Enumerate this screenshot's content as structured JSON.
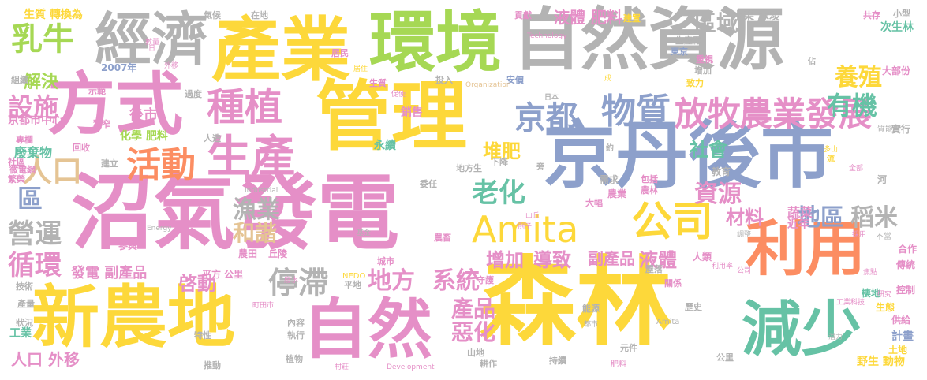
{
  "palette": {
    "pink": "#e58fc7",
    "yellow": "#fdd83a",
    "green": "#66c2a5",
    "orange": "#fc8d62",
    "blue": "#8da0cb",
    "lime": "#a6d854",
    "tan": "#e5c494",
    "gray": "#b3b3b3"
  },
  "words": [
    {
      "text": "自然資源",
      "color": "gray"
    },
    {
      "text": "森林",
      "color": "yellow"
    },
    {
      "text": "沼氣發電",
      "color": "pink"
    },
    {
      "text": "管理",
      "color": "yellow"
    },
    {
      "text": "京丹後市",
      "color": "blue"
    },
    {
      "text": "產業",
      "color": "yellow"
    },
    {
      "text": "環境",
      "color": "lime"
    },
    {
      "text": "新農地",
      "color": "yellow"
    },
    {
      "text": "方式",
      "color": "pink"
    },
    {
      "text": "自然",
      "color": "pink"
    },
    {
      "text": "經濟",
      "color": "gray"
    },
    {
      "text": "利用",
      "color": "orange"
    },
    {
      "text": "減少",
      "color": "green"
    },
    {
      "text": "生產",
      "color": "pink"
    },
    {
      "text": "種植",
      "color": "pink"
    },
    {
      "text": "Amita",
      "color": "yellow"
    },
    {
      "text": "公司",
      "color": "yellow"
    },
    {
      "text": "活動",
      "color": "orange"
    },
    {
      "text": "放牧",
      "color": "pink"
    },
    {
      "text": "農業發展",
      "color": "pink"
    },
    {
      "text": "物質",
      "color": "blue"
    },
    {
      "text": "京都",
      "color": "blue"
    },
    {
      "text": "乳牛",
      "color": "lime"
    },
    {
      "text": "人口",
      "color": "tan"
    },
    {
      "text": "停滯",
      "color": "gray"
    },
    {
      "text": "地方",
      "color": "pink"
    },
    {
      "text": "系統",
      "color": "pink"
    },
    {
      "text": "有機",
      "color": "green"
    },
    {
      "text": "老化",
      "color": "green"
    },
    {
      "text": "區",
      "color": "blue"
    },
    {
      "text": "營運",
      "color": "gray"
    },
    {
      "text": "循環",
      "color": "pink"
    },
    {
      "text": "設施",
      "color": "pink"
    },
    {
      "text": "資源",
      "color": "pink"
    },
    {
      "text": "和諧",
      "color": "tan"
    },
    {
      "text": "漁業",
      "color": "gray"
    },
    {
      "text": "地區",
      "color": "blue"
    },
    {
      "text": "稻米",
      "color": "gray"
    },
    {
      "text": "養殖",
      "color": "yellow"
    },
    {
      "text": "社會",
      "color": "green"
    },
    {
      "text": "堆肥",
      "color": "yellow"
    },
    {
      "text": "材料",
      "color": "pink"
    },
    {
      "text": "區域",
      "color": "gray"
    },
    {
      "text": "產品",
      "color": "pink"
    },
    {
      "text": "惡化",
      "color": "pink"
    },
    {
      "text": "啓動",
      "color": "pink"
    },
    {
      "text": "解決",
      "color": "lime"
    },
    {
      "text": "液體",
      "color": "pink"
    },
    {
      "text": "副產品",
      "color": "pink"
    },
    {
      "text": "增加",
      "color": "pink"
    },
    {
      "text": "導致",
      "color": "pink"
    },
    {
      "text": "人口 外移",
      "color": "pink"
    },
    {
      "text": "發電 副產品",
      "color": "pink"
    },
    {
      "text": "液體 肥料",
      "color": "pink"
    },
    {
      "text": "蔬菜",
      "color": "pink"
    },
    {
      "text": "近年",
      "color": "pink"
    },
    {
      "text": "工業",
      "color": "green"
    },
    {
      "text": "廢棄物",
      "color": "green"
    },
    {
      "text": "後市",
      "color": "pink"
    },
    {
      "text": "京都市中心",
      "color": "pink"
    },
    {
      "text": "化學 肥料",
      "color": "lime"
    },
    {
      "text": "永續",
      "color": "green"
    },
    {
      "text": "銷售",
      "color": "pink"
    },
    {
      "text": "生質 轉換為",
      "color": "yellow"
    },
    {
      "text": "木柴 木炭",
      "color": "gray"
    },
    {
      "text": "次生林",
      "color": "green"
    },
    {
      "text": "2007年",
      "color": "blue"
    },
    {
      "text": "生產厰",
      "color": "gray"
    },
    {
      "text": "大部份",
      "color": "pink"
    },
    {
      "text": "實行",
      "color": "gray"
    },
    {
      "text": "野生 動物",
      "color": "yellow"
    },
    {
      "text": "計畫",
      "color": "blue"
    },
    {
      "text": "供給",
      "color": "pink"
    },
    {
      "text": "生態",
      "color": "yellow"
    },
    {
      "text": "控制",
      "color": "pink"
    },
    {
      "text": "傳統",
      "color": "pink"
    },
    {
      "text": "合作",
      "color": "pink"
    },
    {
      "text": "棲地",
      "color": "green"
    },
    {
      "text": "土地",
      "color": "yellow"
    },
    {
      "text": "農業",
      "color": "pink"
    },
    {
      "text": "教育",
      "color": "gray"
    },
    {
      "text": "需求",
      "color": "gray"
    },
    {
      "text": "人類",
      "color": "pink"
    },
    {
      "text": "關係",
      "color": "pink"
    },
    {
      "text": "屋落",
      "color": "gray"
    },
    {
      "text": "平方 公里",
      "color": "pink"
    },
    {
      "text": "農田",
      "color": "pink"
    },
    {
      "text": "丘陵",
      "color": "pink"
    },
    {
      "text": "參與",
      "color": "pink"
    },
    {
      "text": "植物",
      "color": "gray"
    },
    {
      "text": "耕作",
      "color": "gray"
    },
    {
      "text": "內容",
      "color": "gray"
    },
    {
      "text": "執行",
      "color": "gray"
    },
    {
      "text": "持續",
      "color": "gray"
    },
    {
      "text": "推動",
      "color": "gray"
    },
    {
      "text": "山地",
      "color": "gray"
    },
    {
      "text": "元件",
      "color": "gray"
    },
    {
      "text": "歷史",
      "color": "gray"
    },
    {
      "text": "能源",
      "color": "gray"
    },
    {
      "text": "公里",
      "color": "gray"
    },
    {
      "text": "特性",
      "color": "gray"
    },
    {
      "text": "產量",
      "color": "gray"
    },
    {
      "text": "狀況",
      "color": "gray"
    },
    {
      "text": "技術",
      "color": "gray"
    },
    {
      "text": "組織",
      "color": "gray"
    },
    {
      "text": "專欄",
      "color": "pink"
    },
    {
      "text": "微電網",
      "color": "pink"
    },
    {
      "text": "社區",
      "color": "pink"
    },
    {
      "text": "繁榮",
      "color": "pink"
    },
    {
      "text": "回收",
      "color": "pink"
    },
    {
      "text": "建立",
      "color": "gray"
    },
    {
      "text": "人造",
      "color": "gray"
    },
    {
      "text": "投入",
      "color": "gray"
    },
    {
      "text": "生質",
      "color": "pink"
    },
    {
      "text": "安價",
      "color": "blue"
    },
    {
      "text": "致力",
      "color": "yellow"
    },
    {
      "text": "增加",
      "color": "gray"
    },
    {
      "text": "東京",
      "color": "blue"
    },
    {
      "text": "重視",
      "color": "pink"
    },
    {
      "text": "在地",
      "color": "gray"
    },
    {
      "text": "氣候",
      "color": "gray"
    },
    {
      "text": "貢獻",
      "color": "pink"
    },
    {
      "text": "建置",
      "color": "yellow"
    },
    {
      "text": "小型",
      "color": "gray"
    },
    {
      "text": "共存",
      "color": "pink"
    },
    {
      "text": "居民",
      "color": "pink"
    },
    {
      "text": "過度",
      "color": "gray"
    },
    {
      "text": "示範",
      "color": "pink"
    },
    {
      "text": "狹窄",
      "color": "pink"
    },
    {
      "text": "地方生",
      "color": "gray"
    },
    {
      "text": "下降",
      "color": "gray"
    },
    {
      "text": "委任",
      "color": "gray"
    },
    {
      "text": "包括",
      "color": "pink"
    },
    {
      "text": "大幅",
      "color": "pink"
    },
    {
      "text": "農林",
      "color": "pink"
    },
    {
      "text": "平地",
      "color": "gray"
    },
    {
      "text": "農畜",
      "color": "pink"
    },
    {
      "text": "城市",
      "color": "pink"
    },
    {
      "text": "守護",
      "color": "pink"
    },
    {
      "text": "Technology",
      "color": "pink"
    },
    {
      "text": "Organization",
      "color": "tan"
    },
    {
      "text": "Industrial",
      "color": "gray"
    },
    {
      "text": "Energy",
      "color": "gray"
    },
    {
      "text": "Development",
      "color": "pink"
    },
    {
      "text": "NEDO",
      "color": "yellow"
    },
    {
      "text": "Amita",
      "color": "gray"
    },
    {
      "text": "肥料",
      "color": "pink"
    },
    {
      "text": "不當",
      "color": "gray"
    },
    {
      "text": "質能",
      "color": "gray"
    },
    {
      "text": "流",
      "color": "yellow"
    },
    {
      "text": "河",
      "color": "gray"
    },
    {
      "text": "約",
      "color": "gray"
    },
    {
      "text": "旁",
      "color": "gray"
    },
    {
      "text": "日本",
      "color": "gray"
    },
    {
      "text": "佔",
      "color": "gray"
    },
    {
      "text": "採用",
      "color": "pink"
    },
    {
      "text": "促使",
      "color": "pink"
    },
    {
      "text": "數量",
      "color": "pink"
    },
    {
      "text": "居住",
      "color": "yellow"
    },
    {
      "text": "廢水",
      "color": "pink"
    },
    {
      "text": "外移",
      "color": "pink"
    },
    {
      "text": "日",
      "color": "pink"
    },
    {
      "text": "村莊",
      "color": "pink"
    },
    {
      "text": "町田市",
      "color": "pink"
    },
    {
      "text": "都市",
      "color": "gray"
    },
    {
      "text": "潛力",
      "color": "gray"
    },
    {
      "text": "工業科技",
      "color": "pink"
    },
    {
      "text": "焦點",
      "color": "pink"
    },
    {
      "text": "公司",
      "color": "pink"
    },
    {
      "text": "利用率",
      "color": "pink"
    },
    {
      "text": "研究",
      "color": "pink"
    },
    {
      "text": "山丘",
      "color": "pink"
    },
    {
      "text": "調整",
      "color": "gray"
    },
    {
      "text": "成",
      "color": "yellow"
    },
    {
      "text": "多山",
      "color": "yellow"
    },
    {
      "text": "全部",
      "color": "pink"
    },
    {
      "text": "基金",
      "color": "gray"
    },
    {
      "text": "例子",
      "color": "pink"
    }
  ]
}
